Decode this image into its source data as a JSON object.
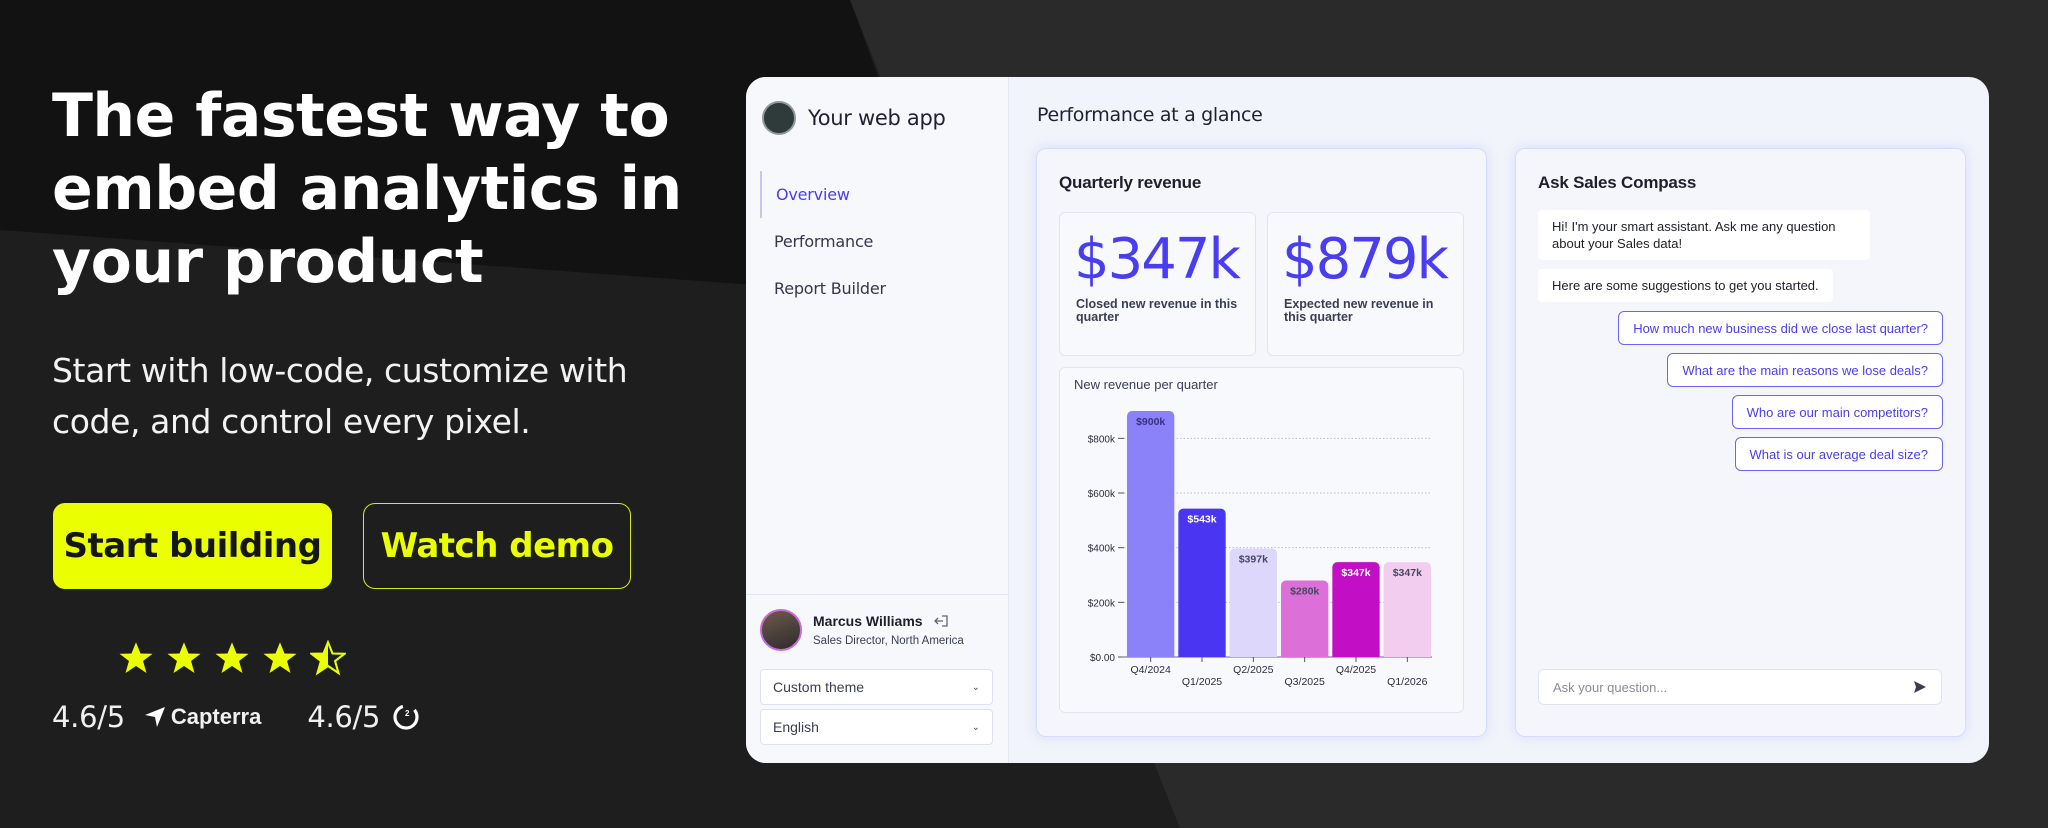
{
  "hero": {
    "headline_lines": [
      "The fastest way to",
      "embed analytics in",
      "your product"
    ],
    "subtitle_lines": [
      "Start with low-code, customize with",
      "code, and control every pixel."
    ],
    "primary_cta": "Start building",
    "secondary_cta": "Watch demo"
  },
  "reviews": {
    "stars": 4.5,
    "capterra_score": "4.6/5",
    "capterra_label": "Capterra",
    "g2_score": "4.6/5"
  },
  "colors": {
    "accent": "#eaff00",
    "brand": "#4a3df0",
    "background": "#1e1e1e"
  },
  "app": {
    "name": "Your web app",
    "nav": [
      {
        "label": "Overview",
        "active": true
      },
      {
        "label": "Performance",
        "active": false
      },
      {
        "label": "Report Builder",
        "active": false
      }
    ],
    "user": {
      "name": "Marcus Williams",
      "role": "Sales Director, North America"
    },
    "theme_select": "Custom theme",
    "language_select": "English",
    "page_title": "Performance at a glance",
    "revenue_panel": {
      "title": "Quarterly revenue",
      "kpis": [
        {
          "value": "$347k",
          "label": "Closed new revenue in this quarter"
        },
        {
          "value": "$879k",
          "label": "Expected new revenue in this quarter"
        }
      ]
    },
    "chat": {
      "title": "Ask Sales Compass",
      "bot_messages": [
        "Hi! I'm your smart assistant. Ask me any question about your Sales data!",
        "Here are some suggestions to get you started."
      ],
      "suggestions": [
        "How much new business did we close last quarter?",
        "What are the main reasons we lose deals?",
        "Who are our main competitors?",
        "What is our average deal size?"
      ],
      "input_placeholder": "Ask your question..."
    }
  },
  "chart_data": {
    "type": "bar",
    "title": "New revenue per quarter",
    "categories": [
      "Q4/2024",
      "Q1/2025",
      "Q2/2025",
      "Q3/2025",
      "Q4/2025",
      "Q1/2026"
    ],
    "values": [
      900,
      543,
      397,
      280,
      347,
      347
    ],
    "data_labels": [
      "$900k",
      "$543k",
      "$397k",
      "$280k",
      "$347k",
      "$347k"
    ],
    "bar_colors": [
      "#8b82fa",
      "#4a36f2",
      "#dcd7fb",
      "#dc70d8",
      "#c20ec4",
      "#f3cdf0"
    ],
    "label_colors": [
      "#3a3180",
      "#ffffff",
      "#444a5e",
      "#444a5e",
      "#ffffff",
      "#444a5e"
    ],
    "yticks": [
      "$0.00",
      "$200k",
      "$400k",
      "$600k",
      "$800k"
    ],
    "ytick_values": [
      0,
      200,
      400,
      600,
      800
    ],
    "ylim": [
      0,
      900
    ],
    "xlabel": "",
    "ylabel": "",
    "grid": true
  }
}
